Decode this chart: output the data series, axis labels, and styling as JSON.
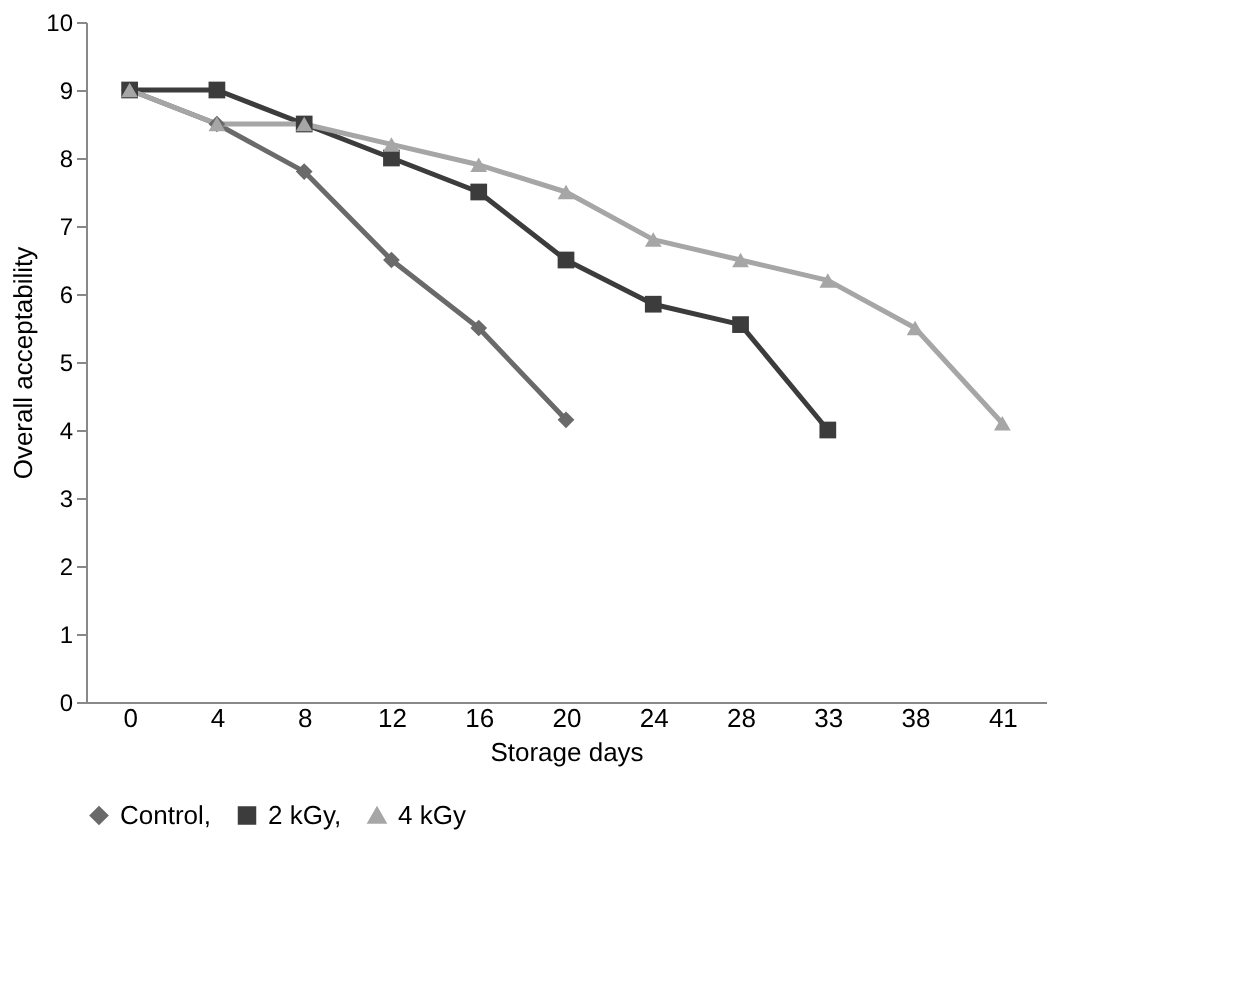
{
  "chart_data": {
    "type": "line",
    "xlabel": "Storage days",
    "ylabel": "Overall acceptability",
    "categories": [
      "0",
      "4",
      "8",
      "12",
      "16",
      "20",
      "24",
      "28",
      "33",
      "38",
      "41"
    ],
    "series": [
      {
        "name": "Control,",
        "color": "#6a6a6a",
        "marker": "diamond",
        "values": [
          9,
          8.5,
          7.8,
          6.5,
          5.5,
          4.15,
          null,
          null,
          null,
          null,
          null
        ]
      },
      {
        "name": "2 kGy,",
        "color": "#3c3c3c",
        "marker": "square",
        "values": [
          9,
          9,
          8.5,
          8,
          7.5,
          6.5,
          5.85,
          5.55,
          4.0,
          null,
          null
        ]
      },
      {
        "name": "4 kGy",
        "color": "#a6a6a6",
        "marker": "triangle",
        "values": [
          9,
          8.5,
          8.5,
          8.2,
          7.9,
          7.5,
          6.8,
          6.5,
          6.2,
          5.5,
          4.1
        ]
      }
    ],
    "ylim": [
      0,
      10
    ],
    "yticks": [
      0,
      1,
      2,
      3,
      4,
      5,
      6,
      7,
      8,
      9,
      10
    ],
    "grid": false,
    "legend": "bottom",
    "line_style": "solid"
  }
}
